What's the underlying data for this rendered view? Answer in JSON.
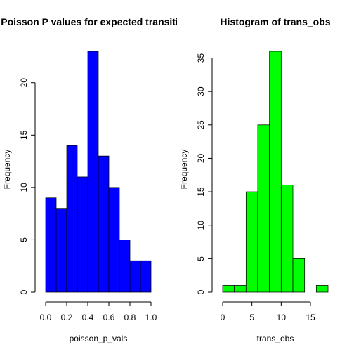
{
  "chart_data": [
    {
      "type": "bar",
      "title": "Poisson P values for expected transitions",
      "xlabel": "poisson_p_vals",
      "ylabel": "Frequency",
      "bin_edges": [
        0.0,
        0.1,
        0.2,
        0.3,
        0.4,
        0.5,
        0.6,
        0.7,
        0.8,
        0.9,
        1.0
      ],
      "values": [
        9,
        8,
        14,
        11,
        23,
        13,
        10,
        5,
        3,
        3
      ],
      "color": "#0000ff",
      "xlim": [
        0,
        1
      ],
      "ylim": [
        0,
        23
      ],
      "xticks": [
        0.0,
        0.2,
        0.4,
        0.6,
        0.8,
        1.0
      ],
      "xtick_labels": [
        "0.0",
        "0.2",
        "0.4",
        "0.6",
        "0.8",
        "1.0"
      ],
      "yticks": [
        0,
        5,
        10,
        15,
        20
      ],
      "ytick_labels": [
        "0",
        "5",
        "10",
        "15",
        "20"
      ],
      "grid": false
    },
    {
      "type": "bar",
      "title": "Histogram of trans_obs",
      "xlabel": "trans_obs",
      "ylabel": "Frequency",
      "bin_edges": [
        0,
        2,
        4,
        6,
        8,
        10,
        12,
        14,
        16,
        18
      ],
      "values": [
        1,
        1,
        15,
        25,
        36,
        16,
        5,
        0,
        1
      ],
      "color": "#00ff00",
      "xlim": [
        0,
        18
      ],
      "ylim": [
        0,
        36
      ],
      "xticks": [
        0,
        5,
        10,
        15
      ],
      "xtick_labels": [
        "0",
        "5",
        "10",
        "15"
      ],
      "yticks": [
        0,
        5,
        10,
        15,
        20,
        25,
        30,
        35
      ],
      "ytick_labels": [
        "0",
        "5",
        "10",
        "15",
        "20",
        "25",
        "30",
        "35"
      ],
      "grid": false
    }
  ]
}
